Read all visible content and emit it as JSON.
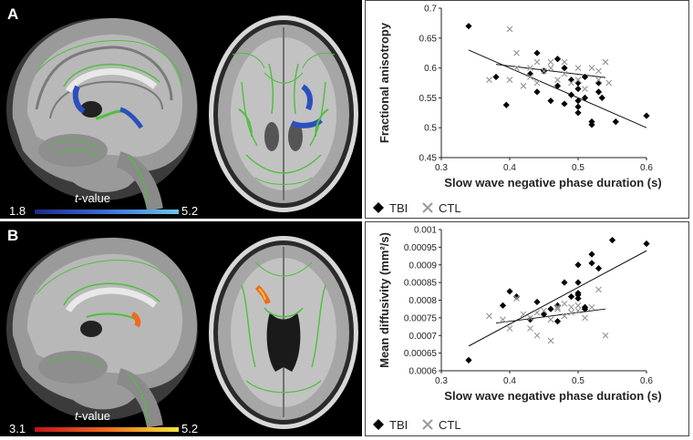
{
  "panels": [
    {
      "letter": "A",
      "colorbar": {
        "label_italic": "t",
        "label_rest": "-value",
        "min": "1.8",
        "max": "5.2",
        "colors": [
          "#1d2a8a",
          "#3b6fd6",
          "#6cc5ee"
        ]
      },
      "legend": [
        {
          "label": "TBI",
          "marker": "diamond"
        },
        {
          "label": "CTL",
          "marker": "x"
        }
      ]
    },
    {
      "letter": "B",
      "colorbar": {
        "label_italic": "t",
        "label_rest": "-value",
        "min": "3.1",
        "max": "5.2",
        "colors": [
          "#c0141c",
          "#f06a1c",
          "#f6e63a"
        ]
      },
      "legend": [
        {
          "label": "TBI",
          "marker": "diamond"
        },
        {
          "label": "CTL",
          "marker": "x"
        }
      ]
    }
  ],
  "chart_data": [
    {
      "type": "scatter",
      "xlabel": "Slow wave negative phase duration (s)",
      "ylabel": "Fractional anisotropy",
      "xlim": [
        0.3,
        0.6
      ],
      "ylim": [
        0.45,
        0.7
      ],
      "xticks": [
        "0.3",
        "0.4",
        "0.5",
        "0.6"
      ],
      "yticks": [
        "0.45",
        "0.5",
        "0.55",
        "0.6",
        "0.65",
        "0.7"
      ],
      "series": [
        {
          "name": "TBI",
          "marker": "diamond",
          "points": [
            [
              0.34,
              0.67
            ],
            [
              0.38,
              0.585
            ],
            [
              0.395,
              0.538
            ],
            [
              0.43,
              0.59
            ],
            [
              0.44,
              0.625
            ],
            [
              0.44,
              0.56
            ],
            [
              0.45,
              0.595
            ],
            [
              0.46,
              0.545
            ],
            [
              0.47,
              0.615
            ],
            [
              0.47,
              0.57
            ],
            [
              0.48,
              0.6
            ],
            [
              0.48,
              0.54
            ],
            [
              0.49,
              0.58
            ],
            [
              0.49,
              0.555
            ],
            [
              0.5,
              0.575
            ],
            [
              0.5,
              0.565
            ],
            [
              0.5,
              0.545
            ],
            [
              0.5,
              0.535
            ],
            [
              0.5,
              0.525
            ],
            [
              0.51,
              0.585
            ],
            [
              0.51,
              0.55
            ],
            [
              0.52,
              0.51
            ],
            [
              0.52,
              0.505
            ],
            [
              0.53,
              0.575
            ],
            [
              0.53,
              0.56
            ],
            [
              0.535,
              0.55
            ],
            [
              0.555,
              0.51
            ],
            [
              0.6,
              0.52
            ]
          ],
          "fit": [
            [
              0.34,
              0.63
            ],
            [
              0.6,
              0.5
            ]
          ]
        },
        {
          "name": "CTL",
          "marker": "x",
          "points": [
            [
              0.37,
              0.58
            ],
            [
              0.4,
              0.665
            ],
            [
              0.4,
              0.58
            ],
            [
              0.41,
              0.6
            ],
            [
              0.41,
              0.625
            ],
            [
              0.42,
              0.57
            ],
            [
              0.43,
              0.6
            ],
            [
              0.43,
              0.585
            ],
            [
              0.44,
              0.61
            ],
            [
              0.44,
              0.575
            ],
            [
              0.45,
              0.595
            ],
            [
              0.46,
              0.61
            ],
            [
              0.46,
              0.6
            ],
            [
              0.47,
              0.58
            ],
            [
              0.48,
              0.59
            ],
            [
              0.48,
              0.61
            ],
            [
              0.49,
              0.575
            ],
            [
              0.5,
              0.6
            ],
            [
              0.5,
              0.58
            ],
            [
              0.51,
              0.565
            ],
            [
              0.52,
              0.6
            ],
            [
              0.53,
              0.595
            ],
            [
              0.53,
              0.58
            ],
            [
              0.54,
              0.61
            ],
            [
              0.545,
              0.575
            ]
          ],
          "fit": [
            [
              0.38,
              0.606
            ],
            [
              0.54,
              0.584
            ]
          ]
        }
      ]
    },
    {
      "type": "scatter",
      "xlabel": "Slow wave negative phase duration (s)",
      "ylabel": "Mean diffusivity (mm²/s)",
      "xlim": [
        0.3,
        0.6
      ],
      "ylim": [
        0.0006,
        0.001
      ],
      "xticks": [
        "0.3",
        "0.4",
        "0.5",
        "0.6"
      ],
      "yticks": [
        "0.0006",
        "0.00065",
        "0.0007",
        "0.00075",
        "0.0008",
        "0.00085",
        "0.0009",
        "0.00095",
        "0.001"
      ],
      "series": [
        {
          "name": "TBI",
          "marker": "diamond",
          "points": [
            [
              0.34,
              0.00063
            ],
            [
              0.39,
              0.000785
            ],
            [
              0.4,
              0.000825
            ],
            [
              0.41,
              0.00081
            ],
            [
              0.43,
              0.000745
            ],
            [
              0.44,
              0.000795
            ],
            [
              0.45,
              0.00076
            ],
            [
              0.46,
              0.000775
            ],
            [
              0.47,
              0.00074
            ],
            [
              0.47,
              0.000785
            ],
            [
              0.48,
              0.00085
            ],
            [
              0.49,
              0.00081
            ],
            [
              0.5,
              0.0009
            ],
            [
              0.5,
              0.00085
            ],
            [
              0.5,
              0.00082
            ],
            [
              0.5,
              0.000815
            ],
            [
              0.5,
              0.000805
            ],
            [
              0.51,
              0.00078
            ],
            [
              0.51,
              0.000775
            ],
            [
              0.52,
              0.00093
            ],
            [
              0.52,
              0.000905
            ],
            [
              0.53,
              0.00089
            ],
            [
              0.55,
              0.00097
            ],
            [
              0.6,
              0.00096
            ]
          ],
          "fit": [
            [
              0.34,
              0.00067
            ],
            [
              0.6,
              0.00094
            ]
          ]
        },
        {
          "name": "CTL",
          "marker": "x",
          "points": [
            [
              0.37,
              0.000755
            ],
            [
              0.39,
              0.000745
            ],
            [
              0.4,
              0.00072
            ],
            [
              0.41,
              0.000805
            ],
            [
              0.42,
              0.00076
            ],
            [
              0.43,
              0.00072
            ],
            [
              0.43,
              0.00075
            ],
            [
              0.44,
              0.0007
            ],
            [
              0.44,
              0.000765
            ],
            [
              0.45,
              0.00077
            ],
            [
              0.46,
              0.000745
            ],
            [
              0.46,
              0.000685
            ],
            [
              0.47,
              0.00078
            ],
            [
              0.47,
              0.000775
            ],
            [
              0.48,
              0.000755
            ],
            [
              0.48,
              0.00079
            ],
            [
              0.49,
              0.000765
            ],
            [
              0.49,
              0.00078
            ],
            [
              0.5,
              0.000785
            ],
            [
              0.5,
              0.00077
            ],
            [
              0.51,
              0.00075
            ],
            [
              0.52,
              0.00078
            ],
            [
              0.53,
              0.00083
            ],
            [
              0.54,
              0.0007
            ]
          ],
          "fit": [
            [
              0.38,
              0.000735
            ],
            [
              0.54,
              0.000775
            ]
          ]
        }
      ]
    }
  ]
}
